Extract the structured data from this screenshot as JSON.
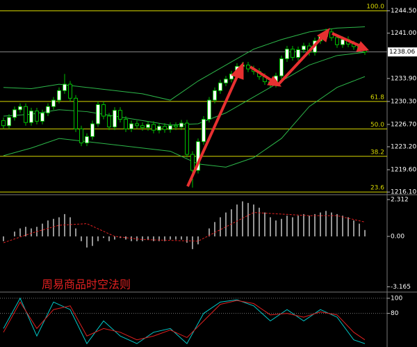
{
  "chart_data": [
    {
      "type": "candlestick",
      "open": [
        1227.3,
        1226.5,
        1227.8,
        1229.0,
        1229.5,
        1227.0,
        1228.8,
        1227.2,
        1228.5,
        1229.5,
        1230.5,
        1232.0,
        1233.0,
        1230.8,
        1226.0,
        1223.8,
        1224.8,
        1226.8,
        1229.8,
        1228.0,
        1226.3,
        1228.9,
        1227.5,
        1226.0,
        1226.8,
        1226.5,
        1226.2,
        1226.7,
        1225.8,
        1226.4,
        1225.9,
        1226.5,
        1226.3,
        1226.9,
        1222.0,
        1219.5,
        1224.0,
        1227.5,
        1230.5,
        1232.0,
        1233.2,
        1233.8,
        1234.6,
        1235.8,
        1236.0,
        1235.4,
        1235.0,
        1234.2,
        1233.4,
        1233.0,
        1234.3,
        1237.0,
        1238.5,
        1237.2,
        1238.4,
        1239.0,
        1238.0,
        1239.8,
        1240.5,
        1241.2,
        1240.3,
        1239.2,
        1240.0,
        1239.3,
        1238.9,
        1238.4
      ],
      "high": [
        1227.8,
        1228.3,
        1229.5,
        1230.0,
        1230.0,
        1229.3,
        1229.3,
        1229.0,
        1230.0,
        1231.0,
        1232.5,
        1234.6,
        1233.5,
        1231.3,
        1226.5,
        1225.3,
        1227.3,
        1230.3,
        1230.3,
        1228.5,
        1229.4,
        1229.4,
        1228.0,
        1227.3,
        1227.3,
        1227.0,
        1227.2,
        1227.2,
        1226.9,
        1226.9,
        1227.0,
        1227.0,
        1227.4,
        1227.4,
        1222.5,
        1224.5,
        1228.0,
        1231.0,
        1232.5,
        1233.7,
        1234.3,
        1235.1,
        1236.3,
        1236.5,
        1236.5,
        1235.9,
        1235.5,
        1234.7,
        1233.9,
        1234.8,
        1237.5,
        1239.0,
        1239.0,
        1238.9,
        1239.5,
        1239.5,
        1240.3,
        1241.0,
        1241.7,
        1241.7,
        1240.8,
        1240.5,
        1240.5,
        1239.8,
        1239.4,
        1238.9
      ],
      "low": [
        1226.0,
        1226.0,
        1227.3,
        1228.5,
        1226.5,
        1226.5,
        1226.7,
        1226.7,
        1228.0,
        1229.0,
        1230.0,
        1231.5,
        1230.3,
        1225.5,
        1223.3,
        1223.3,
        1224.3,
        1226.3,
        1227.5,
        1225.8,
        1225.8,
        1227.0,
        1225.5,
        1225.5,
        1226.0,
        1225.7,
        1225.7,
        1225.3,
        1225.3,
        1225.4,
        1225.4,
        1225.8,
        1225.8,
        1221.5,
        1216.8,
        1219.0,
        1223.5,
        1227.0,
        1230.0,
        1231.5,
        1232.7,
        1233.3,
        1234.1,
        1235.3,
        1234.9,
        1234.5,
        1233.7,
        1232.9,
        1232.5,
        1232.5,
        1233.8,
        1236.5,
        1236.7,
        1236.7,
        1237.9,
        1237.5,
        1237.5,
        1239.3,
        1240.0,
        1239.8,
        1238.7,
        1238.7,
        1238.8,
        1238.4,
        1237.9,
        1237.6
      ],
      "close": [
        1226.5,
        1227.8,
        1229.0,
        1229.5,
        1227.0,
        1228.8,
        1227.2,
        1228.5,
        1229.5,
        1230.5,
        1232.0,
        1233.0,
        1230.8,
        1226.0,
        1223.8,
        1224.8,
        1226.8,
        1229.8,
        1228.0,
        1226.3,
        1228.9,
        1227.5,
        1226.0,
        1226.8,
        1226.5,
        1226.2,
        1226.7,
        1225.8,
        1226.4,
        1225.9,
        1226.5,
        1226.3,
        1226.9,
        1222.0,
        1219.5,
        1224.0,
        1227.5,
        1230.5,
        1232.0,
        1233.2,
        1233.8,
        1234.6,
        1235.8,
        1236.0,
        1235.4,
        1235.0,
        1234.2,
        1233.4,
        1233.0,
        1234.3,
        1237.0,
        1238.5,
        1237.2,
        1238.4,
        1239.0,
        1238.0,
        1239.8,
        1240.5,
        1241.2,
        1240.3,
        1239.2,
        1240.0,
        1239.3,
        1238.9,
        1238.4,
        1238.06
      ],
      "ylim": [
        1215.9,
        1246.2
      ],
      "yticks": [
        {
          "value": 1244.5,
          "label": "1244.50"
        },
        {
          "value": 1241.0,
          "label": "1241.00"
        },
        {
          "value": 1233.9,
          "label": "1233.90"
        },
        {
          "value": 1230.3,
          "label": "1230.30"
        },
        {
          "value": 1226.7,
          "label": "1226.70"
        },
        {
          "value": 1223.2,
          "label": "1223.20"
        },
        {
          "value": 1219.6,
          "label": "1219.60"
        },
        {
          "value": 1216.1,
          "label": "1216.10"
        }
      ],
      "current_price": 1238.06,
      "fib_levels": [
        {
          "value": 1244.5,
          "label": "100.0"
        },
        {
          "value": 1230.3,
          "label": "61.8"
        },
        {
          "value": 1226.0,
          "label": "50.0"
        },
        {
          "value": 1221.7,
          "label": "38.2"
        },
        {
          "value": 1216.1,
          "label": "23.6"
        }
      ],
      "bands": {
        "x": [
          0,
          5,
          10,
          15,
          20,
          25,
          30,
          35,
          40,
          45,
          50,
          55,
          60,
          65
        ],
        "upper": [
          1232.5,
          1232.3,
          1233.0,
          1232.5,
          1232.0,
          1231.5,
          1230.5,
          1233.5,
          1236.0,
          1238.5,
          1240.0,
          1241.2,
          1241.8,
          1242.0
        ],
        "middle": [
          1228.0,
          1228.3,
          1229.0,
          1228.7,
          1228.0,
          1227.3,
          1226.6,
          1226.8,
          1228.5,
          1231.0,
          1233.5,
          1236.0,
          1237.5,
          1238.0
        ],
        "lower": [
          1221.8,
          1223.0,
          1224.5,
          1224.0,
          1223.5,
          1223.0,
          1222.5,
          1220.5,
          1220.0,
          1221.5,
          1224.5,
          1229.5,
          1232.5,
          1234.2
        ]
      },
      "colors": {
        "up": "#ffffff",
        "down": "#000000",
        "wick": "#00c000",
        "band": "#2db84a",
        "fib": "#d8d800"
      }
    },
    {
      "type": "macd",
      "values": [
        -0.3,
        0.0,
        0.3,
        0.5,
        0.6,
        0.5,
        0.6,
        0.8,
        1.0,
        1.1,
        1.2,
        1.4,
        1.2,
        0.5,
        -0.3,
        -0.7,
        -0.6,
        -0.3,
        -0.1,
        -0.3,
        -0.2,
        -0.1,
        -0.2,
        -0.3,
        -0.3,
        -0.3,
        -0.2,
        -0.3,
        -0.3,
        -0.3,
        -0.2,
        -0.2,
        -0.2,
        -0.4,
        -0.8,
        -0.5,
        0.0,
        0.5,
        0.9,
        1.2,
        1.5,
        1.7,
        2.0,
        2.2,
        2.1,
        2.0,
        1.8,
        1.5,
        1.2,
        1.0,
        1.1,
        1.3,
        1.2,
        1.3,
        1.4,
        1.3,
        1.4,
        1.5,
        1.6,
        1.5,
        1.4,
        1.3,
        1.2,
        1.0,
        0.8,
        0.4
      ],
      "signal": {
        "x": [
          0,
          5,
          10,
          15,
          20,
          25,
          30,
          35,
          40,
          45,
          50,
          55,
          60,
          65
        ],
        "values": [
          -0.4,
          0.2,
          0.7,
          0.8,
          0.0,
          -0.2,
          -0.25,
          -0.3,
          0.6,
          1.5,
          1.4,
          1.3,
          1.3,
          0.9
        ]
      },
      "ylim": [
        -3.41,
        2.53
      ],
      "yticks": [
        2.312,
        {
          "value": 0,
          "label": "0.00"
        },
        -3.165
      ],
      "annotation": "周易商品时空法则",
      "colors": {
        "bar": "#c8c8c8",
        "signal": "#e02020",
        "annotation": "#e02020"
      }
    },
    {
      "type": "stochastic",
      "x": [
        0,
        3,
        6,
        9,
        12,
        15,
        18,
        21,
        24,
        27,
        30,
        33,
        36,
        39,
        42,
        45,
        48,
        51,
        54,
        57,
        60,
        63,
        65
      ],
      "series": [
        {
          "color": "#00c8c8",
          "values": [
            60,
            100,
            50,
            95,
            85,
            40,
            70,
            50,
            40,
            55,
            60,
            40,
            80,
            95,
            98,
            90,
            70,
            85,
            70,
            85,
            75,
            45,
            40
          ]
        },
        {
          "color": "#e02020",
          "values": [
            55,
            95,
            60,
            85,
            90,
            50,
            60,
            55,
            45,
            50,
            58,
            48,
            70,
            92,
            97,
            93,
            78,
            80,
            75,
            82,
            78,
            55,
            45
          ]
        }
      ],
      "ylim": [
        35.5,
        107.3
      ],
      "yticks": [
        100,
        80
      ]
    }
  ]
}
